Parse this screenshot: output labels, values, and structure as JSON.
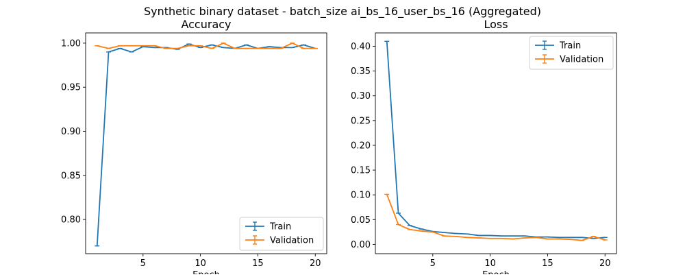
{
  "suptitle": "Synthetic binary dataset - batch_size ai_bs_16_user_bs_16 (Aggregated)",
  "colors": {
    "train": "#1f77b4",
    "validation": "#ff7f0e"
  },
  "chart_data": [
    {
      "type": "line",
      "title": "Accuracy",
      "xlabel": "Epoch",
      "ylabel": "",
      "xlim": [
        0,
        21
      ],
      "ylim": [
        0.7612,
        1.0116
      ],
      "xticks": [
        5,
        10,
        15,
        20
      ],
      "yticks": [
        0.8,
        0.85,
        0.9,
        0.95,
        1.0
      ],
      "ytick_labels": [
        "0.80",
        "0.85",
        "0.90",
        "0.95",
        "1.00"
      ],
      "grid": false,
      "legend_placement": "lower-right",
      "error_bars": true,
      "x": [
        1,
        2,
        3,
        4,
        5,
        6,
        7,
        8,
        9,
        10,
        11,
        12,
        13,
        14,
        15,
        16,
        17,
        18,
        19,
        20
      ],
      "series": [
        {
          "name": "Train",
          "color": "#1f77b4",
          "values": [
            0.77,
            0.99,
            0.994,
            0.99,
            0.996,
            0.995,
            0.995,
            0.993,
            0.999,
            0.995,
            0.998,
            0.995,
            0.994,
            0.998,
            0.994,
            0.996,
            0.995,
            0.995,
            0.998,
            0.994
          ]
        },
        {
          "name": "Validation",
          "color": "#ff7f0e",
          "values": [
            0.997,
            0.994,
            0.997,
            0.997,
            0.997,
            0.997,
            0.994,
            0.994,
            0.997,
            0.997,
            0.994,
            1.0,
            0.994,
            0.994,
            0.994,
            0.994,
            0.994,
            1.0,
            0.994,
            0.994
          ]
        }
      ]
    },
    {
      "type": "line",
      "title": "Loss",
      "xlabel": "Epoch",
      "ylabel": "",
      "xlim": [
        0,
        21
      ],
      "ylim": [
        -0.0188,
        0.427
      ],
      "xticks": [
        5,
        10,
        15,
        20
      ],
      "yticks": [
        0.0,
        0.05,
        0.1,
        0.15,
        0.2,
        0.25,
        0.3,
        0.35,
        0.4
      ],
      "ytick_labels": [
        "0.00",
        "0.05",
        "0.10",
        "0.15",
        "0.20",
        "0.25",
        "0.30",
        "0.35",
        "0.40"
      ],
      "grid": false,
      "legend_placement": "upper-right",
      "error_bars": true,
      "x": [
        1,
        2,
        3,
        4,
        5,
        6,
        7,
        8,
        9,
        10,
        11,
        12,
        13,
        14,
        15,
        16,
        17,
        18,
        19,
        20
      ],
      "series": [
        {
          "name": "Train",
          "color": "#1f77b4",
          "values": [
            0.41,
            0.063,
            0.038,
            0.031,
            0.026,
            0.024,
            0.022,
            0.021,
            0.018,
            0.018,
            0.017,
            0.017,
            0.017,
            0.015,
            0.015,
            0.014,
            0.014,
            0.014,
            0.012,
            0.014
          ]
        },
        {
          "name": "Validation",
          "color": "#ff7f0e",
          "values": [
            0.101,
            0.04,
            0.03,
            0.027,
            0.025,
            0.017,
            0.016,
            0.014,
            0.013,
            0.012,
            0.012,
            0.011,
            0.013,
            0.014,
            0.011,
            0.011,
            0.01,
            0.008,
            0.016,
            0.009
          ]
        }
      ]
    }
  ]
}
